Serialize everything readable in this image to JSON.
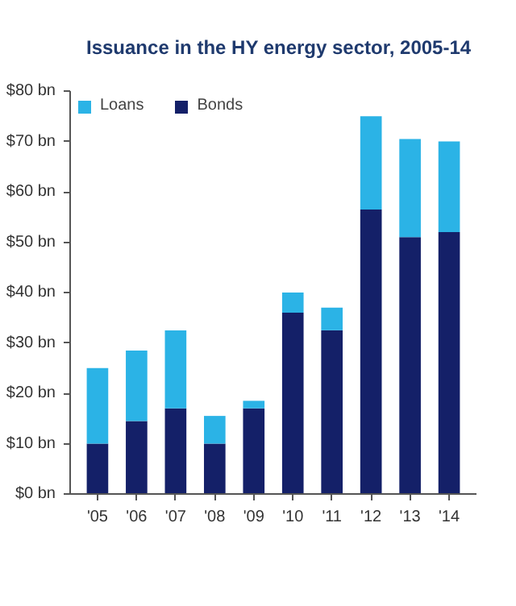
{
  "chart_data": {
    "type": "bar",
    "title": "Issuance in the HY energy sector, 2005-14",
    "stacked": true,
    "categories": [
      "'05",
      "'06",
      "'07",
      "'08",
      "'09",
      "'10",
      "'11",
      "'12",
      "'13",
      "'14"
    ],
    "series": [
      {
        "name": "Bonds",
        "color": "#142068",
        "values": [
          10,
          14.5,
          17,
          10,
          17,
          36,
          32.5,
          56.5,
          51,
          52
        ]
      },
      {
        "name": "Loans",
        "color": "#2bb3e6",
        "values": [
          15,
          14,
          15.5,
          5.5,
          1.5,
          4,
          4.5,
          18.5,
          19.5,
          18
        ]
      }
    ],
    "ylim": [
      0,
      80
    ],
    "yticks": [
      {
        "value": 0,
        "label": "$0 bn"
      },
      {
        "value": 10,
        "label": "$10 bn"
      },
      {
        "value": 20,
        "label": "$20 bn"
      },
      {
        "value": 30,
        "label": "$30 bn"
      },
      {
        "value": 40,
        "label": "$40 bn"
      },
      {
        "value": 50,
        "label": "$50 bn"
      },
      {
        "value": 60,
        "label": "$60 bn"
      },
      {
        "value": 70,
        "label": "$70 bn"
      },
      {
        "value": 80,
        "label": "$80 bn"
      }
    ],
    "grid": false,
    "legend": "top left"
  }
}
